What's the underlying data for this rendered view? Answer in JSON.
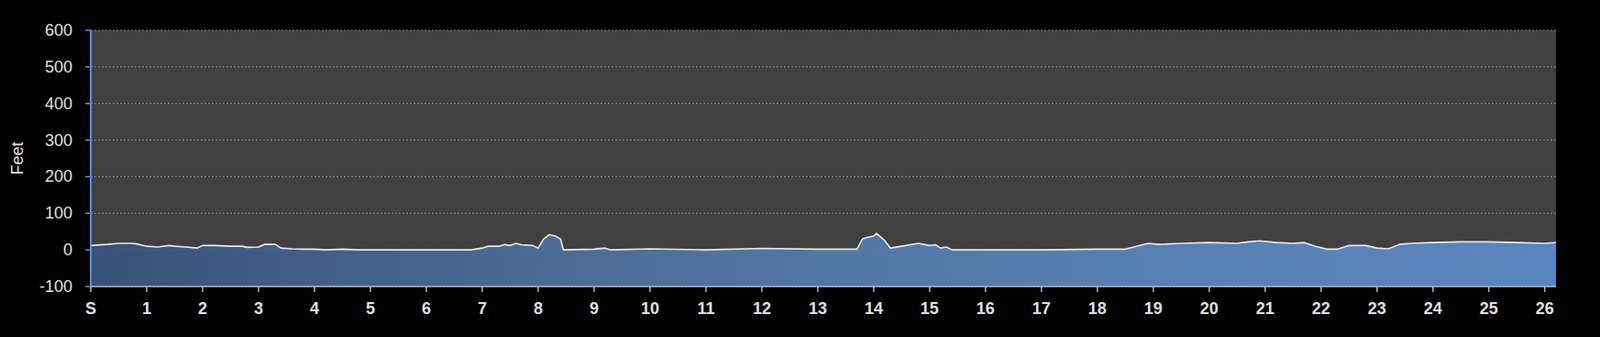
{
  "chart_data": {
    "type": "area",
    "y_label": "Feet",
    "x": [
      0,
      0.3,
      0.5,
      0.7,
      0.8,
      1.0,
      1.2,
      1.4,
      1.5,
      1.7,
      1.9,
      2.0,
      2.2,
      2.5,
      2.7,
      2.8,
      3.0,
      3.1,
      3.3,
      3.4,
      3.6,
      3.8,
      4.0,
      4.2,
      4.5,
      4.8,
      5.0,
      5.5,
      6.0,
      6.5,
      6.8,
      7.0,
      7.1,
      7.3,
      7.4,
      7.5,
      7.6,
      7.7,
      7.9,
      8.0,
      8.1,
      8.2,
      8.3,
      8.4,
      8.45,
      9.0,
      9.2,
      9.3,
      10.0,
      11.0,
      12.0,
      13.0,
      13.7,
      13.8,
      13.9,
      14.0,
      14.05,
      14.2,
      14.3,
      14.5,
      14.8,
      15.0,
      15.1,
      15.2,
      15.3,
      15.4,
      16.0,
      17.0,
      18.0,
      18.5,
      18.7,
      18.9,
      19.1,
      19.5,
      20.0,
      20.5,
      20.7,
      20.9,
      21.2,
      21.5,
      21.7,
      21.9,
      22.1,
      22.3,
      22.5,
      22.8,
      23.0,
      23.2,
      23.4,
      23.6,
      24.0,
      24.5,
      25.0,
      25.5,
      26.0,
      26.2
    ],
    "values": [
      12,
      15,
      18,
      18,
      17,
      10,
      8,
      12,
      10,
      8,
      5,
      12,
      12,
      10,
      10,
      7,
      8,
      15,
      15,
      5,
      3,
      2,
      2,
      0,
      2,
      0,
      0,
      0,
      0,
      0,
      0,
      5,
      10,
      10,
      15,
      12,
      18,
      14,
      12,
      5,
      30,
      42,
      38,
      30,
      0,
      2,
      5,
      0,
      3,
      0,
      4,
      2,
      2,
      30,
      35,
      38,
      45,
      25,
      5,
      10,
      18,
      12,
      14,
      5,
      8,
      0,
      0,
      0,
      2,
      2,
      10,
      18,
      15,
      18,
      20,
      18,
      22,
      25,
      20,
      18,
      20,
      10,
      2,
      2,
      12,
      12,
      5,
      3,
      15,
      18,
      20,
      22,
      22,
      20,
      18,
      20
    ],
    "color": "#4a7ab8",
    "xlim": [
      0,
      26.2
    ],
    "xticks": [
      {
        "value": 0,
        "label": "S"
      },
      1,
      2,
      3,
      4,
      5,
      6,
      7,
      8,
      9,
      10,
      11,
      12,
      13,
      14,
      15,
      16,
      17,
      18,
      19,
      20,
      21,
      22,
      23,
      24,
      25,
      26
    ],
    "ylim": [
      -100,
      600
    ],
    "yticks": [
      -100,
      0,
      100,
      200,
      300,
      400,
      500,
      600
    ],
    "grid": true
  }
}
